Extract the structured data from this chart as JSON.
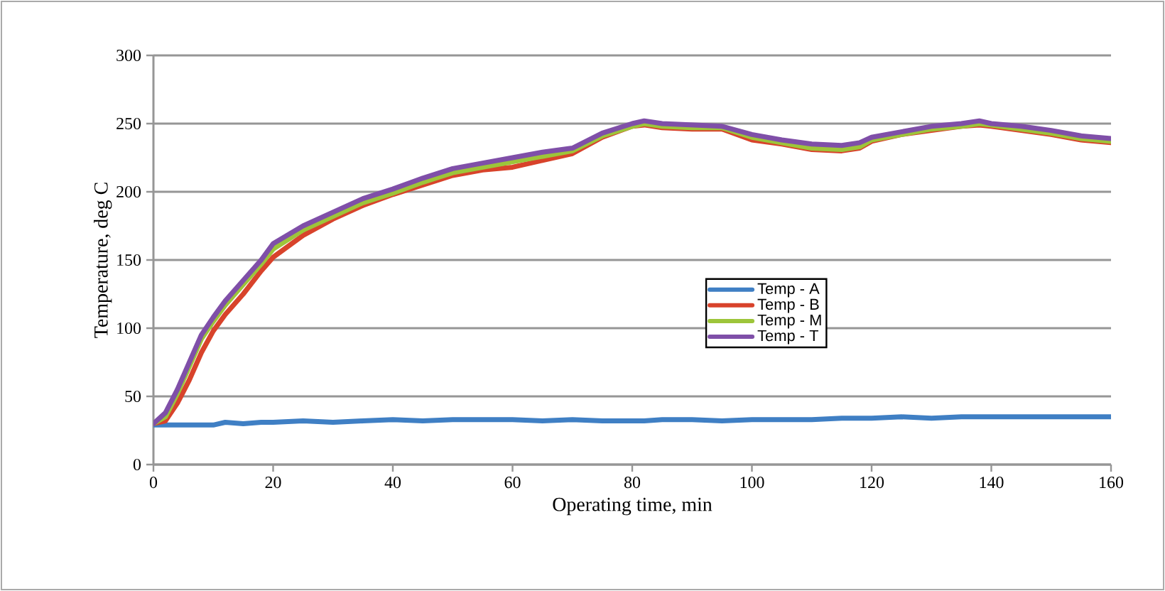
{
  "chart_data": {
    "type": "line",
    "xlabel": "Operating time, min",
    "ylabel": "Temperature, deg C",
    "xlim": [
      0,
      160
    ],
    "xticks": [
      0,
      20,
      40,
      60,
      80,
      100,
      120,
      140,
      160
    ],
    "ylim": [
      0,
      300
    ],
    "yticks": [
      0,
      50,
      100,
      150,
      200,
      250,
      300
    ],
    "grid": "y",
    "legend": "center",
    "marker": "none",
    "line_style": "solid",
    "x": [
      0,
      2,
      4,
      6,
      8,
      10,
      12,
      15,
      18,
      20,
      25,
      30,
      35,
      40,
      45,
      50,
      55,
      60,
      65,
      70,
      75,
      80,
      82,
      85,
      90,
      95,
      100,
      105,
      110,
      115,
      118,
      120,
      125,
      130,
      135,
      138,
      140,
      145,
      150,
      155,
      160
    ],
    "series": [
      {
        "name": "Temp - A",
        "color": "#3f7fc4",
        "values": [
          29,
          29,
          29,
          29,
          29,
          29,
          31,
          30,
          31,
          31,
          32,
          31,
          32,
          33,
          32,
          33,
          33,
          33,
          32,
          33,
          32,
          32,
          32,
          33,
          33,
          32,
          33,
          33,
          33,
          34,
          34,
          34,
          35,
          34,
          35,
          35,
          35,
          35,
          35,
          35,
          35
        ]
      },
      {
        "name": "Temp - B",
        "color": "#d8432b",
        "values": [
          30,
          32,
          45,
          62,
          82,
          98,
          110,
          125,
          142,
          152,
          168,
          180,
          190,
          198,
          205,
          212,
          216,
          218,
          223,
          228,
          240,
          248,
          249,
          247,
          246,
          246,
          238,
          235,
          231,
          230,
          232,
          237,
          242,
          245,
          248,
          249,
          248,
          245,
          242,
          238,
          236
        ]
      },
      {
        "name": "Temp - M",
        "color": "#9dc53a",
        "values": [
          30,
          35,
          52,
          72,
          92,
          105,
          117,
          132,
          147,
          158,
          172,
          182,
          192,
          199,
          207,
          214,
          218,
          222,
          226,
          230,
          241,
          248,
          250,
          248,
          247,
          247,
          240,
          236,
          232,
          231,
          233,
          238,
          242,
          246,
          248,
          250,
          249,
          246,
          243,
          239,
          237
        ]
      },
      {
        "name": "Temp - T",
        "color": "#7f4fa8",
        "values": [
          30,
          38,
          55,
          75,
          95,
          108,
          120,
          135,
          150,
          162,
          175,
          185,
          195,
          202,
          210,
          217,
          221,
          225,
          229,
          232,
          243,
          250,
          252,
          250,
          249,
          248,
          242,
          238,
          235,
          234,
          236,
          240,
          244,
          248,
          250,
          252,
          250,
          248,
          245,
          241,
          239
        ]
      }
    ]
  }
}
